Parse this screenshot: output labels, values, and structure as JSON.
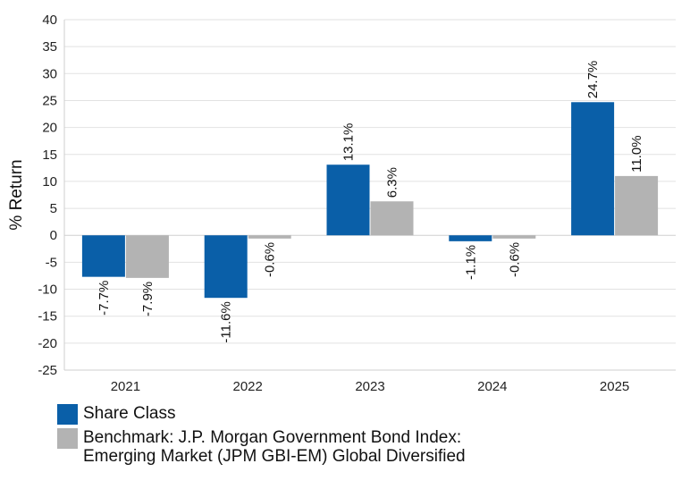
{
  "chart_data": {
    "type": "bar",
    "ylabel": "% Return",
    "ylim": [
      -25,
      40
    ],
    "yticks": [
      40,
      35,
      30,
      25,
      20,
      15,
      10,
      5,
      0,
      -5,
      -10,
      -15,
      -20,
      -25
    ],
    "grid": true,
    "legend_position": "bottom",
    "categories": [
      "2021",
      "2022",
      "2023",
      "2024",
      "2025"
    ],
    "series": [
      {
        "name": "Share Class",
        "color": "#0A5FA8",
        "values": [
          -7.7,
          -11.6,
          13.1,
          -1.1,
          24.7
        ],
        "labels": [
          "-7.7%",
          "-11.6%",
          "13.1%",
          "-1.1%",
          "24.7%"
        ]
      },
      {
        "name": "Benchmark: J.P. Morgan Government Bond Index:\nEmerging Market (JPM GBI-EM) Global Diversified",
        "color": "#B3B3B3",
        "values": [
          -7.9,
          -0.6,
          6.3,
          -0.6,
          11.0
        ],
        "labels": [
          "-7.9%",
          "-0.6%",
          "6.3%",
          "-0.6%",
          "11.0%"
        ]
      }
    ]
  }
}
